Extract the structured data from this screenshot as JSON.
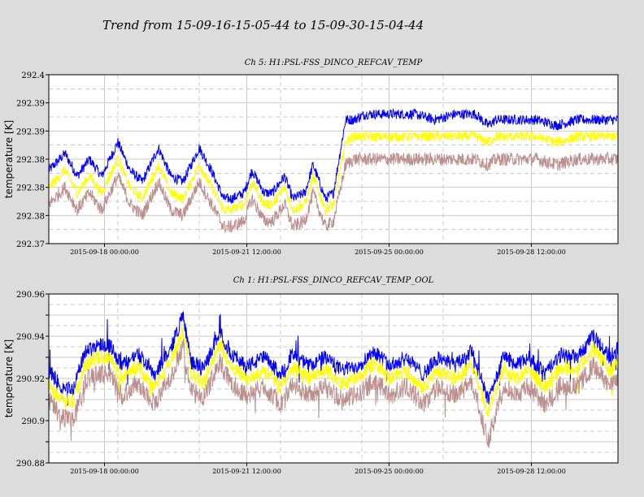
{
  "page": {
    "title": "Trend from 15-09-16-15-05-44 to 15-09-30-15-04-44"
  },
  "colors": {
    "background": "#dcdcdc",
    "plot_background": "#ffffff",
    "grid": "#c8c8c8",
    "max": "#0000ff",
    "mean": "#ffff00",
    "min": "#bc8f8f"
  },
  "chart_data": [
    {
      "type": "line",
      "title": "Ch 5: H1:PSL-FSS_DINCO_REFCAV_TEMP",
      "ylabel": "temperature [K]",
      "ylim": [
        292.37,
        292.4
      ],
      "yticks": [
        292.37,
        292.375,
        292.38,
        292.385,
        292.39,
        292.395,
        292.4
      ],
      "ytick_labels": [
        "292.37",
        "292.38",
        "292.38",
        "292.38",
        "292.39",
        "292.39",
        "292.4"
      ],
      "xlim_days": [
        0,
        14
      ],
      "xticks": [
        {
          "day": 1.37,
          "label": "2015-09-18 00:00:00"
        },
        {
          "day": 4.87,
          "label": "2015-09-21 12:00:00"
        },
        {
          "day": 8.37,
          "label": "2015-09-25 00:00:00"
        },
        {
          "day": 11.87,
          "label": "2015-09-28 12:00:00"
        }
      ],
      "grid": true,
      "series": [
        {
          "color": "blue",
          "x": [
            0,
            0.4,
            0.7,
            1.0,
            1.3,
            1.7,
            2.0,
            2.3,
            2.7,
            3.0,
            3.3,
            3.7,
            4.0,
            4.3,
            4.5,
            4.8,
            5.0,
            5.3,
            5.5,
            5.8,
            6.0,
            6.3,
            6.5,
            6.8,
            7.0,
            7.3,
            7.5,
            7.8,
            8.2,
            8.6,
            9.0,
            9.5,
            10.0,
            10.5,
            10.8,
            11.0,
            11.5,
            12.0,
            12.5,
            13.0,
            13.5,
            14.0
          ],
          "values": [
            292.383,
            292.386,
            292.382,
            292.385,
            292.382,
            292.388,
            292.383,
            292.381,
            292.387,
            292.382,
            292.381,
            292.387,
            292.383,
            292.378,
            292.378,
            292.379,
            292.383,
            292.379,
            292.379,
            292.382,
            292.378,
            292.379,
            292.384,
            292.378,
            292.379,
            292.392,
            292.392,
            292.393,
            292.393,
            292.393,
            292.393,
            292.392,
            292.393,
            292.393,
            292.391,
            292.392,
            292.392,
            292.392,
            292.391,
            292.392,
            292.392,
            292.392
          ]
        },
        {
          "color": "yellow",
          "x": [
            0,
            0.4,
            0.7,
            1.0,
            1.3,
            1.7,
            2.0,
            2.3,
            2.7,
            3.0,
            3.3,
            3.7,
            4.0,
            4.3,
            4.5,
            4.8,
            5.0,
            5.3,
            5.5,
            5.8,
            6.0,
            6.3,
            6.5,
            6.8,
            7.0,
            7.3,
            7.5,
            7.8,
            8.2,
            8.6,
            9.0,
            9.5,
            10.0,
            10.5,
            10.8,
            11.0,
            11.5,
            12.0,
            12.5,
            13.0,
            13.5,
            14.0
          ],
          "values": [
            292.38,
            292.383,
            292.379,
            292.382,
            292.379,
            292.385,
            292.38,
            292.378,
            292.384,
            292.379,
            292.378,
            292.384,
            292.38,
            292.376,
            292.376,
            292.377,
            292.381,
            292.377,
            292.377,
            292.38,
            292.376,
            292.377,
            292.382,
            292.376,
            292.377,
            292.388,
            292.389,
            292.389,
            292.389,
            292.389,
            292.389,
            292.389,
            292.389,
            292.389,
            292.388,
            292.389,
            292.389,
            292.389,
            292.388,
            292.389,
            292.389,
            292.389
          ]
        },
        {
          "color": "rosybrown",
          "x": [
            0,
            0.4,
            0.7,
            1.0,
            1.3,
            1.7,
            2.0,
            2.3,
            2.7,
            3.0,
            3.3,
            3.7,
            4.0,
            4.3,
            4.5,
            4.8,
            5.0,
            5.3,
            5.5,
            5.8,
            6.0,
            6.3,
            6.5,
            6.8,
            7.0,
            7.3,
            7.5,
            7.8,
            8.2,
            8.6,
            9.0,
            9.5,
            10.0,
            10.5,
            10.8,
            11.0,
            11.5,
            12.0,
            12.5,
            13.0,
            13.5,
            14.0
          ],
          "values": [
            292.377,
            292.38,
            292.376,
            292.379,
            292.376,
            292.382,
            292.377,
            292.375,
            292.381,
            292.376,
            292.375,
            292.381,
            292.377,
            292.373,
            292.373,
            292.374,
            292.378,
            292.374,
            292.374,
            292.377,
            292.373,
            292.374,
            292.379,
            292.373,
            292.374,
            292.384,
            292.385,
            292.385,
            292.385,
            292.385,
            292.385,
            292.385,
            292.385,
            292.385,
            292.384,
            292.385,
            292.385,
            292.385,
            292.384,
            292.385,
            292.385,
            292.385
          ]
        }
      ]
    },
    {
      "type": "line",
      "title": "Ch 1: H1:PSL-FSS_DINCO_REFCAV_TEMP_OOL",
      "ylabel": "temperature [K]",
      "ylim": [
        290.88,
        290.96
      ],
      "yticks": [
        290.88,
        290.89,
        290.9,
        290.91,
        290.92,
        290.93,
        290.94,
        290.95,
        290.96
      ],
      "ytick_labels": [
        "290.88",
        "",
        "290.9",
        "",
        "290.92",
        "",
        "290.94",
        "",
        "290.96"
      ],
      "xlim_days": [
        0,
        14
      ],
      "xticks": [
        {
          "day": 1.37,
          "label": "2015-09-18 00:00:00"
        },
        {
          "day": 4.87,
          "label": "2015-09-21 12:00:00"
        },
        {
          "day": 8.37,
          "label": "2015-09-25 00:00:00"
        },
        {
          "day": 11.87,
          "label": "2015-09-28 12:00:00"
        }
      ],
      "grid": true,
      "series": [
        {
          "color": "blue",
          "x": [
            0,
            0.3,
            0.6,
            0.9,
            1.2,
            1.5,
            1.8,
            2.2,
            2.6,
            3.0,
            3.3,
            3.5,
            3.8,
            4.2,
            4.5,
            4.9,
            5.3,
            5.7,
            6.0,
            6.4,
            6.8,
            7.2,
            7.6,
            8.0,
            8.4,
            8.8,
            9.2,
            9.6,
            10.0,
            10.4,
            10.8,
            11.2,
            11.5,
            11.8,
            12.2,
            12.6,
            13.0,
            13.4,
            13.8,
            14.0
          ],
          "values": [
            290.924,
            290.916,
            290.915,
            290.933,
            290.936,
            290.936,
            290.926,
            290.932,
            290.922,
            290.934,
            290.95,
            290.928,
            290.924,
            290.942,
            290.931,
            290.926,
            290.93,
            290.922,
            290.931,
            290.926,
            290.93,
            290.924,
            290.926,
            290.933,
            290.926,
            290.93,
            290.922,
            290.93,
            290.926,
            290.933,
            290.91,
            290.931,
            290.926,
            290.93,
            290.922,
            290.931,
            290.93,
            290.94,
            290.93,
            290.935
          ]
        },
        {
          "color": "yellow",
          "x": [
            0,
            0.3,
            0.6,
            0.9,
            1.2,
            1.5,
            1.8,
            2.2,
            2.6,
            3.0,
            3.3,
            3.5,
            3.8,
            4.2,
            4.5,
            4.9,
            5.3,
            5.7,
            6.0,
            6.4,
            6.8,
            7.2,
            7.6,
            8.0,
            8.4,
            8.8,
            9.2,
            9.6,
            10.0,
            10.4,
            10.8,
            11.2,
            11.5,
            11.8,
            12.2,
            12.6,
            13.0,
            13.4,
            13.8,
            14.0
          ],
          "values": [
            290.918,
            290.91,
            290.909,
            290.927,
            290.93,
            290.93,
            290.92,
            290.926,
            290.916,
            290.928,
            290.944,
            290.922,
            290.918,
            290.936,
            290.925,
            290.92,
            290.924,
            290.916,
            290.925,
            290.92,
            290.924,
            290.918,
            290.92,
            290.927,
            290.92,
            290.924,
            290.916,
            290.924,
            290.92,
            290.927,
            290.904,
            290.925,
            290.92,
            290.924,
            290.916,
            290.925,
            290.924,
            290.934,
            290.924,
            290.929
          ]
        },
        {
          "color": "rosybrown",
          "x": [
            0,
            0.3,
            0.6,
            0.9,
            1.2,
            1.5,
            1.8,
            2.2,
            2.6,
            3.0,
            3.3,
            3.5,
            3.8,
            4.2,
            4.5,
            4.9,
            5.3,
            5.7,
            6.0,
            6.4,
            6.8,
            7.2,
            7.6,
            8.0,
            8.4,
            8.8,
            9.2,
            9.6,
            10.0,
            10.4,
            10.8,
            11.2,
            11.5,
            11.8,
            12.2,
            12.6,
            13.0,
            13.4,
            13.8,
            14.0
          ],
          "values": [
            290.91,
            290.902,
            290.901,
            290.919,
            290.922,
            290.922,
            290.912,
            290.918,
            290.908,
            290.92,
            290.936,
            290.914,
            290.91,
            290.928,
            290.917,
            290.912,
            290.916,
            290.908,
            290.917,
            290.912,
            290.916,
            290.91,
            290.912,
            290.919,
            290.912,
            290.916,
            290.908,
            290.916,
            290.912,
            290.919,
            290.89,
            290.917,
            290.912,
            290.916,
            290.908,
            290.917,
            290.916,
            290.926,
            290.916,
            290.921
          ]
        }
      ]
    }
  ]
}
